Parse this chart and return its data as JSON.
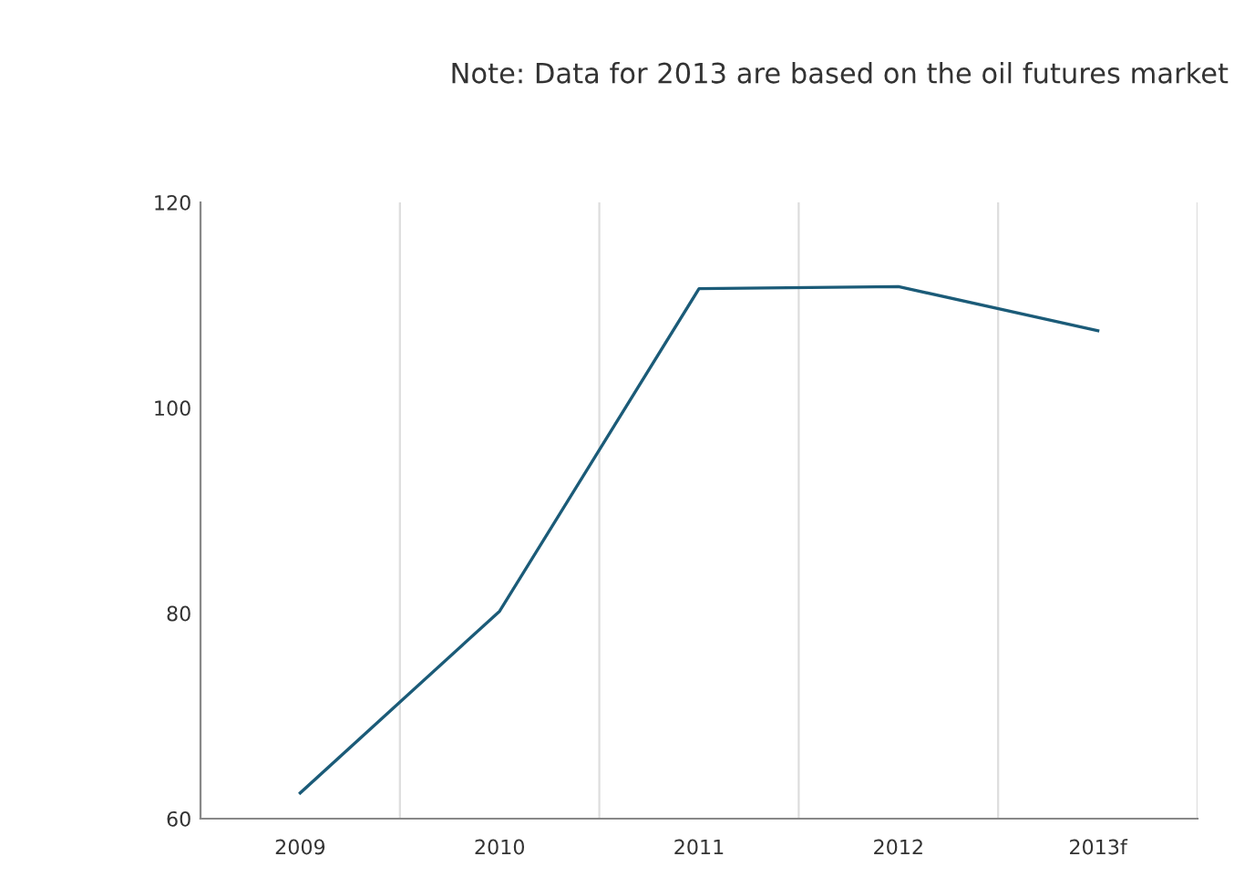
{
  "chart_data": {
    "type": "line",
    "categories": [
      "2009",
      "2010",
      "2011",
      "2012",
      "2013f"
    ],
    "series": [
      {
        "color": "#1b5b78",
        "values": [
          62.5,
          80.2,
          111.6,
          111.8,
          107.5
        ]
      }
    ],
    "ylim": [
      60,
      120
    ],
    "yticks": [
      60,
      80,
      100,
      120
    ],
    "grid": "x",
    "marker": "none",
    "line_style": "solid",
    "annotations": [
      "Note: Data for 2013 are based on the oil futures market"
    ]
  }
}
